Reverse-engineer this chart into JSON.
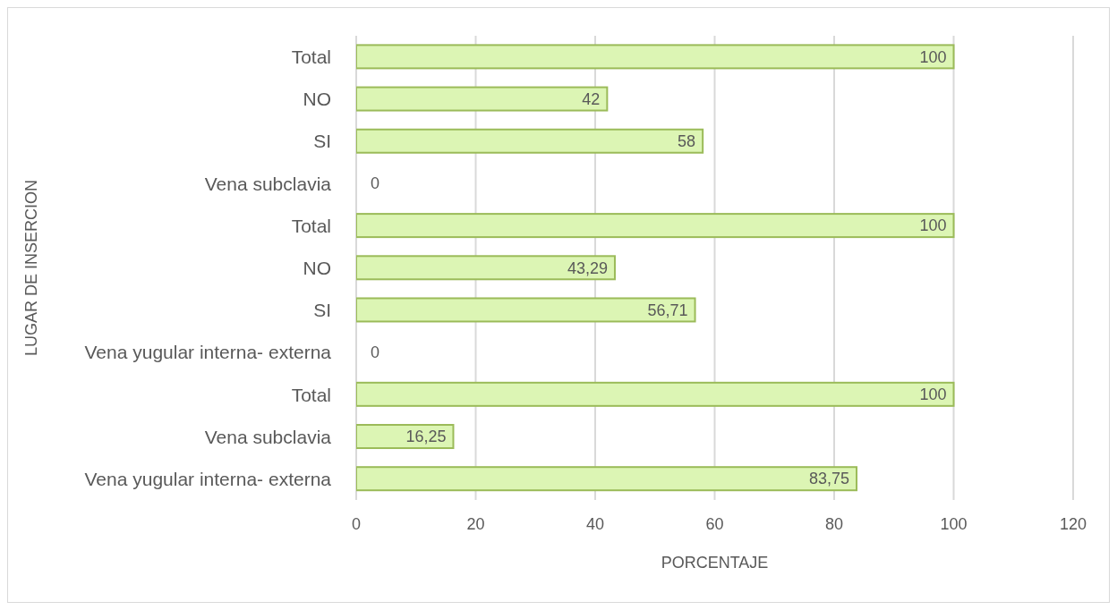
{
  "chart_data": {
    "type": "bar",
    "orientation": "horizontal",
    "xlabel": "PORCENTAJE",
    "ylabel": "LUGAR DE INSERCION",
    "categories": [
      "Total",
      "NO",
      "SI",
      "Vena subclavia",
      "Total",
      "NO",
      "SI",
      "Vena yugular interna- externa",
      "Total",
      "Vena subclavia",
      "Vena yugular interna- externa"
    ],
    "values": [
      100,
      42,
      58,
      0,
      100,
      43.29,
      56.71,
      0,
      100,
      16.25,
      83.75
    ],
    "value_labels": [
      "100",
      "42",
      "58",
      "0",
      "100",
      "43,29",
      "56,71",
      "0",
      "100",
      "16,25",
      "83,75"
    ],
    "color": "#dcf5b4",
    "xlim": [
      0,
      120
    ],
    "xticks": [
      0,
      20,
      40,
      60,
      80,
      100,
      120
    ],
    "grid": "x",
    "legend": false
  }
}
